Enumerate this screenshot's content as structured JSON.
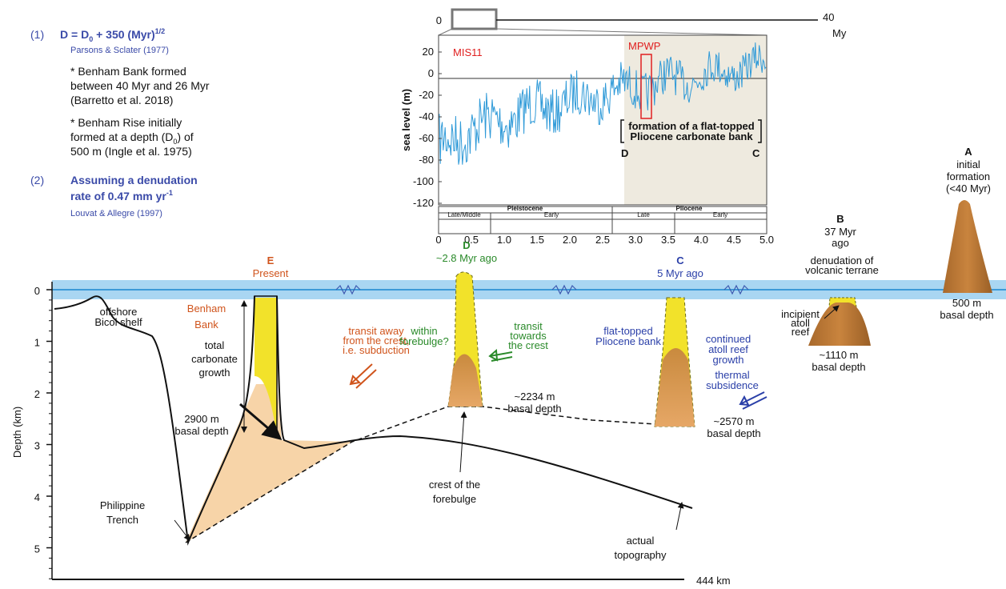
{
  "notes": {
    "eq1_number": "(1)",
    "eq1": [
      "D = D",
      "0",
      " + 350 (Myr)",
      "1/2"
    ],
    "eq1_ref": "Parsons & Sclater (1977)",
    "bullet1": [
      "* Benham Bank formed",
      "between 40 Myr and 26 Myr",
      "(Barretto et al. 2018)"
    ],
    "bullet2": {
      "line1": "* Benham Rise initially",
      "line2": [
        "formed at a depth (D",
        "0",
        ") of"
      ],
      "line3": "500 m (Ingle et al. 1975)"
    },
    "eq2_number": "(2)",
    "eq2_line1": "Assuming a denudation",
    "eq2_line2": [
      "rate of 0.47 mm yr",
      "-1"
    ],
    "eq2_ref": "Louvat & Allegre (1997)"
  },
  "timeline": {
    "start": "0",
    "end": "40",
    "unit": "My"
  },
  "inset": {
    "labels": [
      "MIS11",
      "MPWP"
    ],
    "y_label": "sea level (m)",
    "y_ticks": [
      "20",
      "0",
      "-20",
      "-40",
      "-60",
      "-80",
      "-100",
      "-120"
    ],
    "x_ticks": [
      "0",
      "0.5",
      "1.0",
      "1.5",
      "2.0",
      "2.5",
      "3.0",
      "3.5",
      "4.0",
      "4.5",
      "5.0"
    ],
    "epochs": [
      "Pleistocene",
      "Pliocene"
    ],
    "sub_epochs": [
      "Late/Middle",
      "Early",
      "Late",
      "Early"
    ],
    "bracket": [
      "formation of a flat-topped",
      "Pliocene carbonate bank"
    ],
    "bracket_ends": [
      "D",
      "C"
    ]
  },
  "stages": {
    "E": [
      "E",
      "Present"
    ],
    "D": [
      "D",
      "~2.8 Myr ago"
    ],
    "C": [
      "C",
      "5 Myr ago"
    ],
    "B": [
      "B",
      "37 Myr",
      "ago"
    ],
    "A": [
      "A",
      "initial",
      "formation",
      "(<40 Myr)"
    ]
  },
  "annotations": {
    "shelf": [
      "offshore",
      "Bicol shelf"
    ],
    "bank": [
      "Benham",
      "Bank"
    ],
    "growth": [
      "total",
      "carbonate",
      "growth"
    ],
    "e_depth": [
      "2900 m",
      "basal depth"
    ],
    "subduction": [
      "transit away",
      "from the crest,",
      "i.e. subduction"
    ],
    "within": [
      "within",
      "forebulge?"
    ],
    "towards": [
      "transit",
      "towards",
      "the crest"
    ],
    "d_depth": [
      "~2234 m",
      "basal depth"
    ],
    "flat": [
      "flat-topped",
      "Pliocene bank"
    ],
    "atoll": [
      "continued",
      "atoll reef",
      "growth"
    ],
    "thermal": [
      "thermal",
      "subsidence"
    ],
    "c_depth": [
      "~2570 m",
      "basal depth"
    ],
    "denudation": [
      "denudation of",
      "volcanic terrane"
    ],
    "incipient": [
      "incipient",
      "atoll",
      "reef"
    ],
    "b_depth": [
      "~1110 m",
      "basal depth"
    ],
    "a_depth": [
      "500 m",
      "basal depth"
    ],
    "crest": [
      "crest of the",
      "forebulge"
    ],
    "trench": [
      "Philippine",
      "Trench"
    ],
    "topo": [
      "actual",
      "topography"
    ]
  },
  "axis": {
    "label": "Depth (km)",
    "ticks": [
      "0",
      "1",
      "2",
      "3",
      "4",
      "5"
    ],
    "distance": "444 km"
  }
}
